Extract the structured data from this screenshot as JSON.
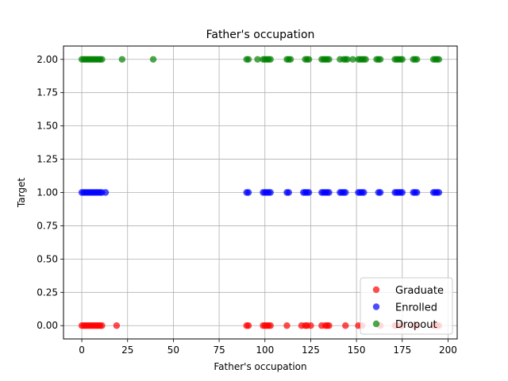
{
  "chart_data": {
    "type": "scatter",
    "title": "Father's occupation",
    "xlabel": "Father's occupation",
    "ylabel": "Target",
    "xlim": [
      -10,
      205
    ],
    "ylim": [
      -0.1,
      2.1
    ],
    "xticks": [
      0,
      25,
      50,
      75,
      100,
      125,
      150,
      175,
      200
    ],
    "xtick_labels": [
      "0",
      "25",
      "50",
      "75",
      "100",
      "125",
      "150",
      "175",
      "200"
    ],
    "yticks": [
      0.0,
      0.25,
      0.5,
      0.75,
      1.0,
      1.25,
      1.5,
      1.75,
      2.0
    ],
    "ytick_labels": [
      "0.00",
      "0.25",
      "0.50",
      "0.75",
      "1.00",
      "1.25",
      "1.50",
      "1.75",
      "2.00"
    ],
    "grid": true,
    "legend_position": "bottom-right",
    "series": [
      {
        "name": "Graduate",
        "color": "#ff0000",
        "y": 0,
        "x": [
          0,
          1,
          2,
          3,
          4,
          5,
          6,
          7,
          8,
          9,
          10,
          11,
          19,
          90,
          91,
          99,
          100,
          101,
          102,
          103,
          112,
          120,
          122,
          123,
          125,
          131,
          133,
          134,
          135,
          144,
          151,
          153,
          163,
          171,
          172,
          174,
          175,
          181,
          182,
          183,
          192,
          193,
          194,
          195
        ]
      },
      {
        "name": "Enrolled",
        "color": "#0000ff",
        "y": 1,
        "x": [
          0,
          1,
          2,
          3,
          4,
          5,
          6,
          7,
          8,
          9,
          10,
          11,
          13,
          90,
          91,
          99,
          100,
          101,
          102,
          103,
          112,
          113,
          121,
          122,
          123,
          124,
          131,
          132,
          133,
          134,
          135,
          141,
          142,
          143,
          144,
          151,
          152,
          153,
          154,
          162,
          163,
          171,
          172,
          173,
          174,
          175,
          181,
          182,
          183,
          192,
          193,
          194,
          195
        ]
      },
      {
        "name": "Dropout",
        "color": "#008000",
        "y": 2,
        "x": [
          0,
          1,
          2,
          3,
          4,
          5,
          6,
          7,
          8,
          9,
          10,
          11,
          22,
          39,
          90,
          91,
          96,
          99,
          100,
          101,
          102,
          103,
          112,
          113,
          114,
          122,
          123,
          124,
          131,
          132,
          133,
          134,
          135,
          141,
          143,
          144,
          145,
          148,
          151,
          152,
          153,
          154,
          155,
          161,
          162,
          163,
          171,
          172,
          173,
          174,
          175,
          181,
          182,
          183,
          192,
          193,
          194,
          195
        ]
      }
    ]
  }
}
